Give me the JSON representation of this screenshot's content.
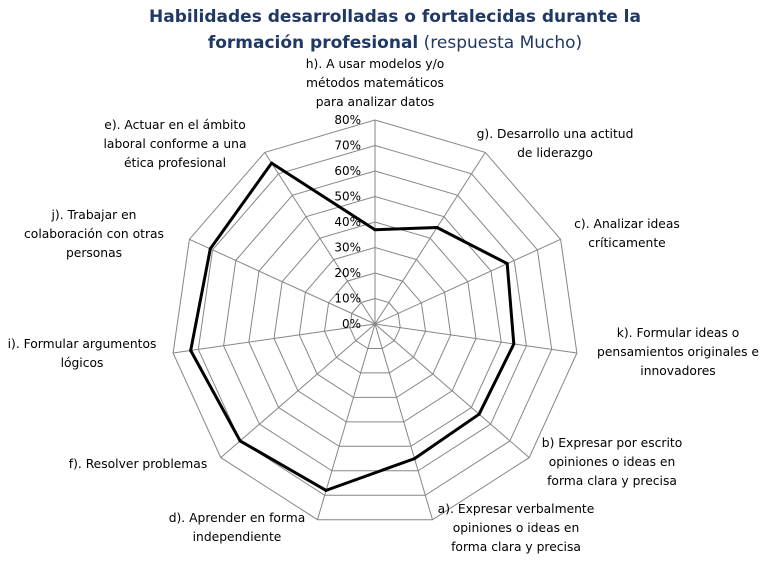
{
  "chart_data": {
    "type": "radar",
    "title_bold": "Habilidades desarrolladas o fortalecidas durante la formación profesional",
    "title_normal": "(respuesta Mucho)",
    "title_lines": [
      {
        "bold": "Habilidades desarrolladas o fortalecidas durante la",
        "normal": ""
      },
      {
        "bold": "formación profesional",
        "normal": " (respuesta Mucho)"
      }
    ],
    "r_ticks": [
      "0%",
      "10%",
      "20%",
      "30%",
      "40%",
      "50%",
      "60%",
      "70%",
      "80%"
    ],
    "r_max": 80,
    "grid": true,
    "legend": "none",
    "line_color": "#000000",
    "grid_color": "#868686",
    "categories": [
      {
        "key": "h",
        "label_lines": [
          "h). A usar modelos y/o",
          "métodos matemáticos",
          "para analizar datos"
        ]
      },
      {
        "key": "g",
        "label_lines": [
          "g). Desarrollo una actitud",
          "de liderazgo"
        ]
      },
      {
        "key": "c",
        "label_lines": [
          "c). Analizar ideas",
          "críticamente"
        ]
      },
      {
        "key": "k",
        "label_lines": [
          "k). Formular ideas o",
          "pensamientos originales e",
          "innovadores"
        ]
      },
      {
        "key": "b",
        "label_lines": [
          "b) Expresar por escrito",
          "opiniones o ideas en",
          "forma clara y precisa"
        ]
      },
      {
        "key": "a",
        "label_lines": [
          "a). Expresar verbalmente",
          "opiniones o ideas en",
          "forma clara y precisa"
        ]
      },
      {
        "key": "d",
        "label_lines": [
          "d). Aprender en forma",
          "independiente"
        ]
      },
      {
        "key": "f",
        "label_lines": [
          "f). Resolver problemas"
        ]
      },
      {
        "key": "i",
        "label_lines": [
          "i). Formular argumentos",
          "lógicos"
        ]
      },
      {
        "key": "j",
        "label_lines": [
          "j). Trabajar en",
          "colaboración con otras",
          "personas"
        ]
      },
      {
        "key": "e",
        "label_lines": [
          "e). Actuar en el ámbito",
          "laboral conforme a una",
          "ética profesional"
        ]
      }
    ],
    "values": [
      37,
      45,
      57,
      55,
      54,
      55,
      68,
      70,
      73,
      71,
      75
    ]
  }
}
